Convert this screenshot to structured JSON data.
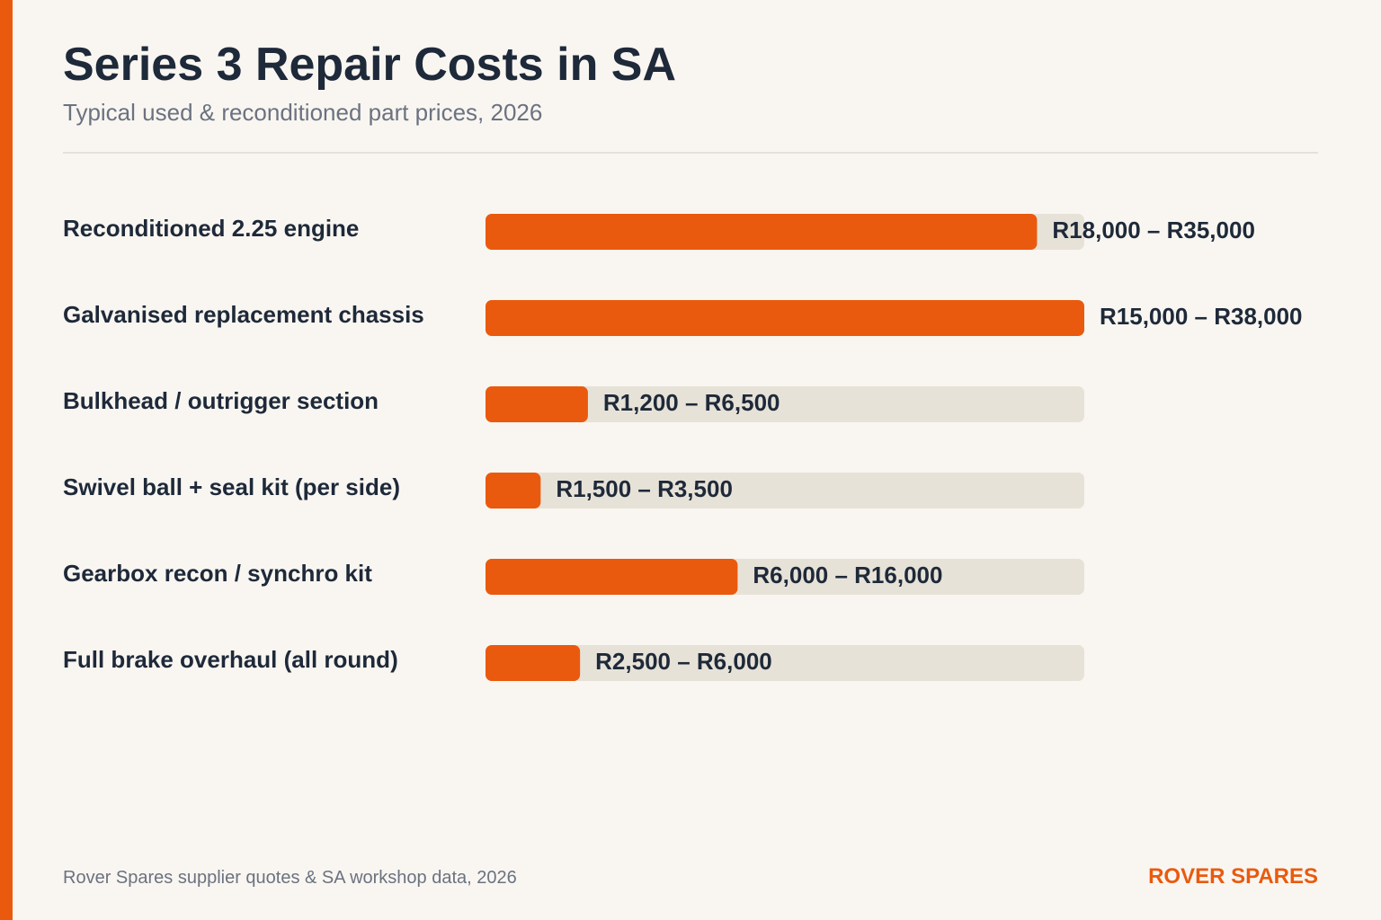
{
  "header": {
    "title": "Series 3 Repair Costs in SA",
    "subtitle": "Typical used & reconditioned part prices, 2026"
  },
  "footer": {
    "source": "Rover Spares supplier quotes & SA workshop data, 2026",
    "brand": "ROVER SPARES"
  },
  "colors": {
    "accent": "#ea5a0e",
    "track": "#e7e2d8",
    "label": "#1e2939",
    "background": "#f9f6f1"
  },
  "chart_data": {
    "type": "bar",
    "orientation": "horizontal",
    "categories": [
      "Reconditioned 2.25 engine",
      "Galvanised replacement chassis",
      "Bulkhead / outrigger section",
      "Swivel ball + seal kit (per side)",
      "Gearbox recon / synchro kit",
      "Full brake overhaul (all round)"
    ],
    "values": [
      35000,
      38000,
      6500,
      3500,
      16000,
      6000
    ],
    "value_labels": [
      "R18,000 – R35,000",
      "R15,000 – R38,000",
      "R1,200 – R6,500",
      "R1,500 – R3,500",
      "R6,000 – R16,000",
      "R2,500 – R6,000"
    ],
    "xlim": [
      0,
      38000
    ],
    "grid": false,
    "legend": "none"
  }
}
